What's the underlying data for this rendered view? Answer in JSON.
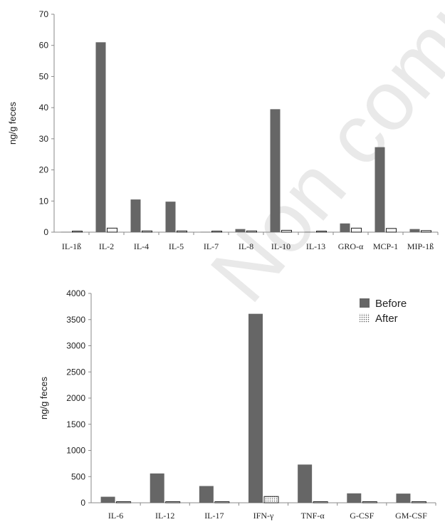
{
  "watermark": "Non comme",
  "colors": {
    "before": "#666666",
    "after_stroke": "#222222",
    "after_fill": "#f4f4f4",
    "axis": "#8a8a8a"
  },
  "chart_data": [
    {
      "type": "bar",
      "ylabel": "ng/g feces",
      "ylim": [
        0,
        70
      ],
      "yticks": [
        0,
        10,
        20,
        30,
        40,
        50,
        60,
        70
      ],
      "categories": [
        "IL-1ß",
        "IL-2",
        "IL-4",
        "IL-5",
        "IL-7",
        "IL-8",
        "IL-10",
        "IL-13",
        "GRO-α",
        "MCP-1",
        "MIP-1ß"
      ],
      "series": [
        {
          "name": "Before",
          "values": [
            0.1,
            61,
            10.5,
            9.8,
            0.1,
            1.0,
            39.5,
            0.1,
            2.8,
            27.3,
            1.0
          ]
        },
        {
          "name": "After",
          "values": [
            0.3,
            1.3,
            0.4,
            0.4,
            0.3,
            0.4,
            0.6,
            0.3,
            1.3,
            1.2,
            0.5
          ]
        }
      ],
      "grid": false,
      "legend": "none"
    },
    {
      "type": "bar",
      "ylabel": "ng/g feces",
      "ylim": [
        0,
        4000
      ],
      "yticks": [
        0,
        500,
        1000,
        1500,
        2000,
        2500,
        3000,
        3500,
        4000
      ],
      "categories": [
        "IL-6",
        "IL-12",
        "IL-17",
        "IFN-γ",
        "TNF-α",
        "G-CSF",
        "GM-CSF"
      ],
      "series": [
        {
          "name": "Before",
          "values": [
            115,
            560,
            320,
            3610,
            730,
            180,
            175
          ]
        },
        {
          "name": "After",
          "values": [
            15,
            15,
            15,
            120,
            15,
            15,
            15
          ]
        }
      ],
      "grid": false,
      "legend": "top-right"
    }
  ]
}
